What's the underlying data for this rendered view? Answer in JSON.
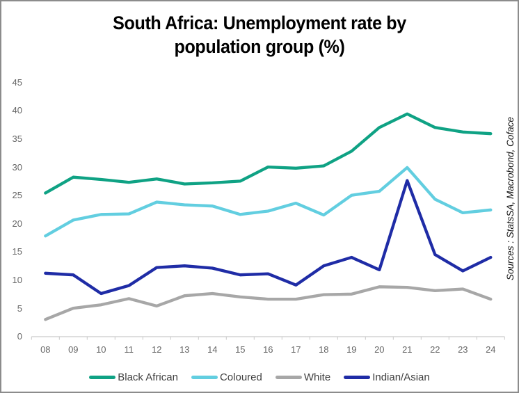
{
  "title": {
    "line1": "South Africa: Unemployment rate by",
    "line2": "population group (%)"
  },
  "source_note": "Sources : StatsSA, Macrobond, Coface",
  "axis_color": "#c9c9c9",
  "label_color": "#666666",
  "chart_data": {
    "type": "line",
    "title": "South Africa: Unemployment rate by population group (%)",
    "categories": [
      "08",
      "09",
      "10",
      "11",
      "12",
      "13",
      "14",
      "15",
      "16",
      "17",
      "18",
      "19",
      "20",
      "21",
      "22",
      "23",
      "24"
    ],
    "series": [
      {
        "name": "Black African",
        "color": "#0FA284",
        "values": [
          25.4,
          28.2,
          27.8,
          27.3,
          27.9,
          27.0,
          27.2,
          27.5,
          30.0,
          29.8,
          30.2,
          32.8,
          37.0,
          39.4,
          37.0,
          36.2,
          35.9
        ]
      },
      {
        "name": "Coloured",
        "color": "#62CEE0",
        "values": [
          17.8,
          20.6,
          21.6,
          21.7,
          23.8,
          23.3,
          23.1,
          21.6,
          22.2,
          23.6,
          21.5,
          25.0,
          25.7,
          29.9,
          24.3,
          21.9,
          22.4
        ]
      },
      {
        "name": "White",
        "color": "#A7A7A7",
        "values": [
          3.0,
          5.0,
          5.6,
          6.7,
          5.4,
          7.2,
          7.6,
          7.0,
          6.6,
          6.6,
          7.4,
          7.5,
          8.8,
          8.7,
          8.1,
          8.4,
          6.6
        ]
      },
      {
        "name": "Indian/Asian",
        "color": "#1F2CA6",
        "values": [
          11.2,
          10.9,
          7.6,
          9.0,
          12.2,
          12.5,
          12.1,
          10.9,
          11.1,
          9.1,
          12.5,
          14.0,
          11.8,
          27.6,
          14.5,
          11.6,
          14.0
        ]
      }
    ],
    "ylim": [
      0,
      45
    ],
    "ytick_step": 5,
    "grid": false,
    "legend_position": "bottom",
    "line_width": 4.3
  }
}
